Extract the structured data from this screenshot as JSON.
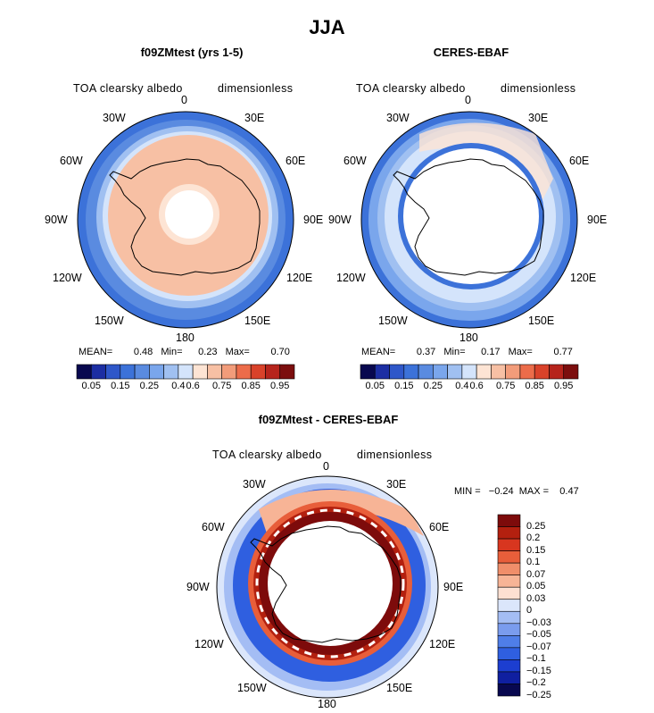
{
  "main_title": "JJA",
  "colors": {
    "abs_scale": [
      "#08084f",
      "#1c2ea3",
      "#2f57c9",
      "#3c72d9",
      "#5a8be0",
      "#7aa6ec",
      "#a0c0f1",
      "#d4e4fb",
      "#fde4d4",
      "#f7c0a4",
      "#f29c7a",
      "#ec6c4a",
      "#d9422a",
      "#b6241c",
      "#7c0e0e"
    ],
    "diff_scale": [
      "#08084f",
      "#0f1fa0",
      "#1c3ed0",
      "#2f5fe0",
      "#4f7ee8",
      "#7a9cee",
      "#a4bdf4",
      "#dbe6fb",
      "#fde0d2",
      "#f7b496",
      "#f08e6a",
      "#e85e3a",
      "#d8361f",
      "#b3200f",
      "#7d0b0b"
    ]
  },
  "panels": [
    {
      "title": "f09ZMtest (yrs 1-5)",
      "variable": "TOA clearsky albedo",
      "units": "dimensionless",
      "stats": {
        "mean_label": "MEAN=",
        "mean": "0.48",
        "min_label": "Min=",
        "min": "0.23",
        "max_label": "Max=",
        "max": "0.70"
      },
      "colorbar_labels": [
        "0.05",
        "0.15",
        "0.25",
        "0.4",
        "0.6",
        "0.75",
        "0.85",
        "0.95"
      ]
    },
    {
      "title": "CERES-EBAF",
      "variable": "TOA clearsky albedo",
      "units": "dimensionless",
      "stats": {
        "mean_label": "MEAN=",
        "mean": "0.37",
        "min_label": "Min=",
        "min": "0.17",
        "max_label": "Max=",
        "max": "0.77"
      },
      "colorbar_labels": [
        "0.05",
        "0.15",
        "0.25",
        "0.4",
        "0.6",
        "0.75",
        "0.85",
        "0.95"
      ]
    }
  ],
  "diff_panel": {
    "title": "f09ZMtest - CERES-EBAF",
    "variable": "TOA clearsky albedo",
    "units": "dimensionless",
    "minmax_text": "MIN =   −0.24  MAX =    0.47",
    "colorbar_labels": [
      "0.25",
      "0.2",
      "0.15",
      "0.1",
      "0.07",
      "0.05",
      "0.03",
      "0",
      "−0.03",
      "−0.05",
      "−0.07",
      "−0.1",
      "−0.15",
      "−0.2",
      "−0.25"
    ]
  },
  "longitude_labels": {
    "top": "0",
    "bottom": "180",
    "upper_left": "30W",
    "upper_right": "30E",
    "left_upper": "60W",
    "right_upper": "60E",
    "left": "90W",
    "right": "90E",
    "left_lower": "120W",
    "right_lower": "120E",
    "lower_left": "150W",
    "lower_right": "150E"
  }
}
